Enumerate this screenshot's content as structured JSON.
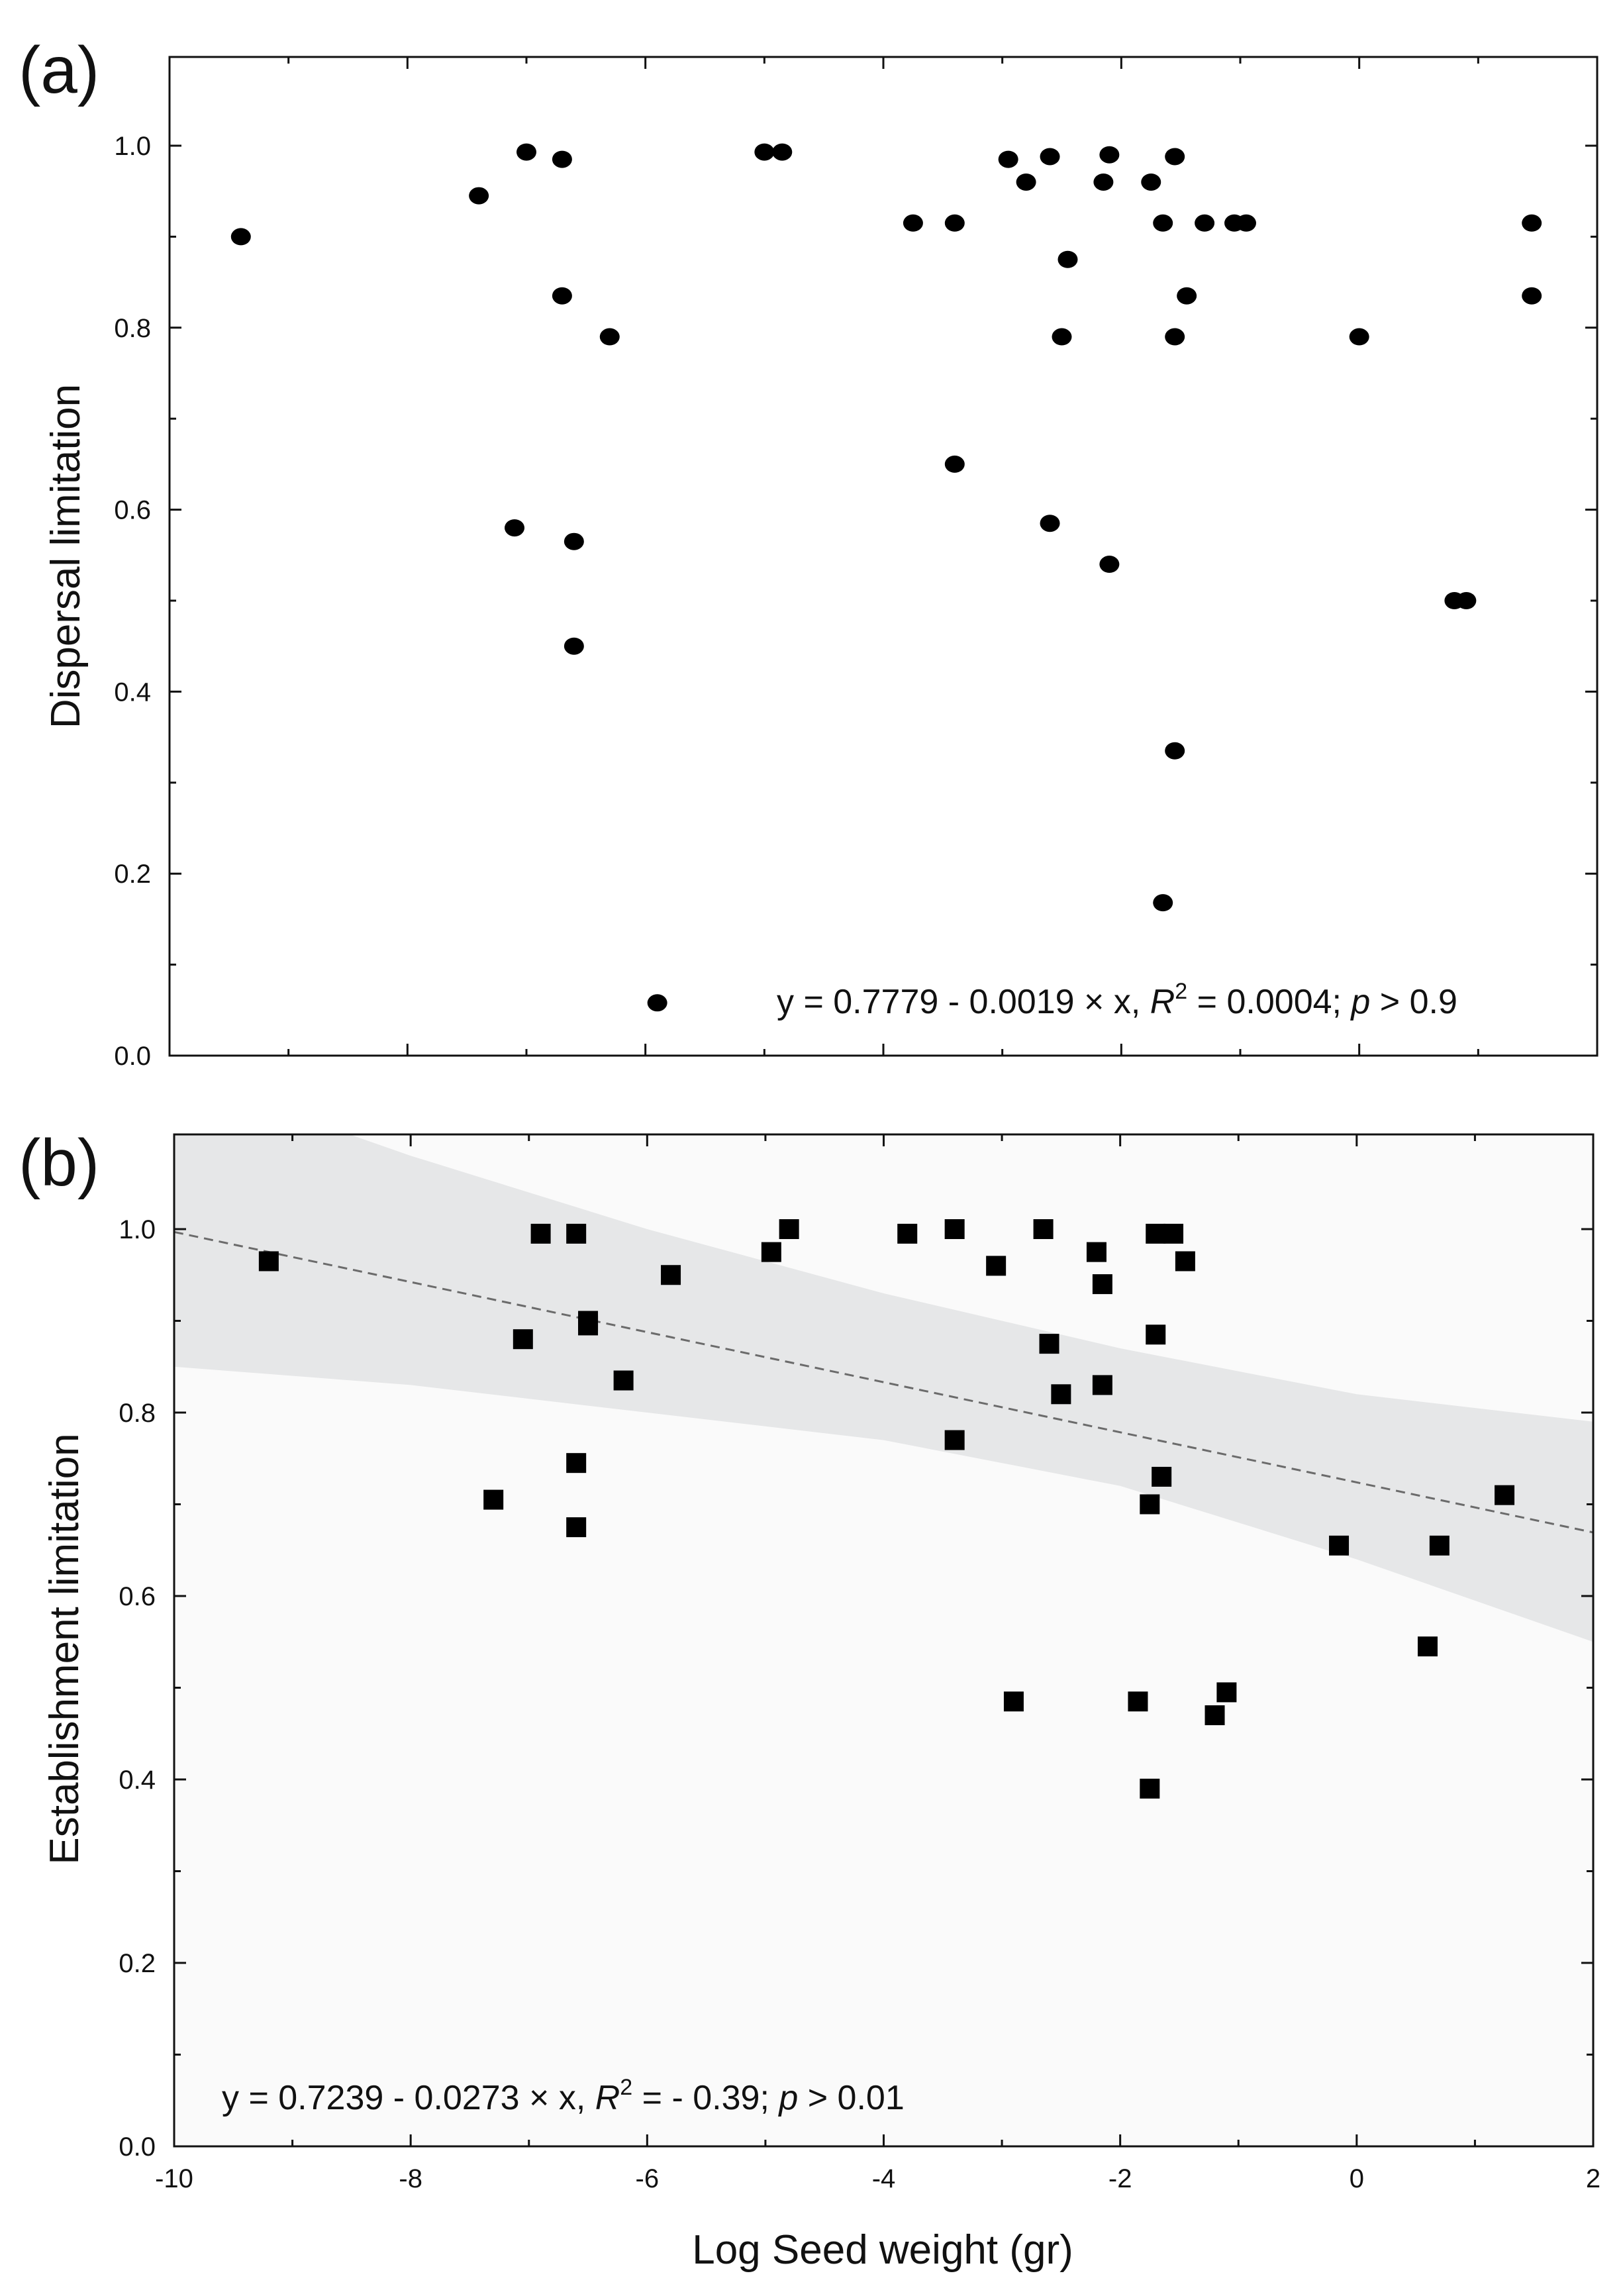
{
  "chart_data": [
    {
      "panel": "(a)",
      "type": "scatter",
      "marker": "circle",
      "xlabel": "",
      "ylabel": "Dispersal limitation",
      "xlim": [
        -10,
        2
      ],
      "ylim": [
        0,
        1.1
      ],
      "yticks": [
        0.0,
        0.2,
        0.4,
        0.6,
        0.8,
        1.0
      ],
      "ytick_labels": [
        "0.0",
        "0.2",
        "0.4",
        "0.6",
        "0.8",
        "1.0"
      ],
      "xtick_labels_shown": false,
      "annotation": {
        "prefix": "y = 0.7779 - 0.0019 × x, ",
        "r": "R",
        "sup": "2",
        "mid": " = 0.0004; ",
        "p": "p",
        "suffix": " > 0.9"
      },
      "points": [
        {
          "x": -9.4,
          "y": 0.9
        },
        {
          "x": -7.4,
          "y": 0.945
        },
        {
          "x": -7.0,
          "y": 0.993
        },
        {
          "x": -6.7,
          "y": 0.985
        },
        {
          "x": -6.7,
          "y": 0.835
        },
        {
          "x": -6.3,
          "y": 0.79
        },
        {
          "x": -7.1,
          "y": 0.58
        },
        {
          "x": -6.6,
          "y": 0.565
        },
        {
          "x": -6.6,
          "y": 0.45
        },
        {
          "x": -5.9,
          "y": 0.058
        },
        {
          "x": -5.0,
          "y": 0.993
        },
        {
          "x": -4.85,
          "y": 0.993
        },
        {
          "x": -3.75,
          "y": 0.915
        },
        {
          "x": -3.4,
          "y": 0.915
        },
        {
          "x": -3.4,
          "y": 0.65
        },
        {
          "x": -2.95,
          "y": 0.985
        },
        {
          "x": -2.8,
          "y": 0.96
        },
        {
          "x": -2.6,
          "y": 0.988
        },
        {
          "x": -2.6,
          "y": 0.585
        },
        {
          "x": -2.45,
          "y": 0.875
        },
        {
          "x": -2.5,
          "y": 0.79
        },
        {
          "x": -2.1,
          "y": 0.99
        },
        {
          "x": -2.15,
          "y": 0.96
        },
        {
          "x": -2.1,
          "y": 0.54
        },
        {
          "x": -1.75,
          "y": 0.96
        },
        {
          "x": -1.65,
          "y": 0.915
        },
        {
          "x": -1.55,
          "y": 0.988
        },
        {
          "x": -1.45,
          "y": 0.835
        },
        {
          "x": -1.55,
          "y": 0.79
        },
        {
          "x": -1.3,
          "y": 0.915
        },
        {
          "x": -1.05,
          "y": 0.915
        },
        {
          "x": -0.95,
          "y": 0.915
        },
        {
          "x": -1.55,
          "y": 0.335
        },
        {
          "x": -1.65,
          "y": 0.168
        },
        {
          "x": 0.0,
          "y": 0.79
        },
        {
          "x": 0.8,
          "y": 0.5
        },
        {
          "x": 0.9,
          "y": 0.5
        },
        {
          "x": 1.45,
          "y": 0.915
        },
        {
          "x": 1.45,
          "y": 0.835
        }
      ]
    },
    {
      "panel": "(b)",
      "type": "scatter",
      "marker": "square",
      "xlabel": "Log Seed weight (gr)",
      "ylabel": "Establishment limitation",
      "xlim": [
        -10,
        2
      ],
      "ylim": [
        0,
        1.1
      ],
      "xticks": [
        -10,
        -8,
        -6,
        -4,
        -2,
        0,
        2
      ],
      "xtick_labels": [
        "-10",
        "-8",
        "-6",
        "-4",
        "-2",
        "0",
        "2"
      ],
      "yticks": [
        0.0,
        0.2,
        0.4,
        0.6,
        0.8,
        1.0
      ],
      "ytick_labels": [
        "0.0",
        "0.2",
        "0.4",
        "0.6",
        "0.8",
        "1.0"
      ],
      "fit_line": {
        "intercept": 0.7239,
        "slope": -0.0273,
        "style": "dashed"
      },
      "confidence_band": {
        "x": [
          -10,
          -8,
          -6,
          -4,
          -2,
          0,
          2
        ],
        "upper": [
          1.17,
          1.08,
          1.0,
          0.93,
          0.87,
          0.82,
          0.79
        ],
        "lower": [
          0.85,
          0.83,
          0.8,
          0.77,
          0.72,
          0.64,
          0.55
        ]
      },
      "annotation": {
        "prefix": "y = 0.7239 - 0.0273 × x, ",
        "r": "R",
        "sup": "2",
        "mid": " =  - 0.39; ",
        "p": "p",
        "suffix": " > 0.01"
      },
      "points": [
        {
          "x": -9.2,
          "y": 0.965
        },
        {
          "x": -7.3,
          "y": 0.705
        },
        {
          "x": -7.05,
          "y": 0.88
        },
        {
          "x": -6.9,
          "y": 0.995
        },
        {
          "x": -6.6,
          "y": 0.995
        },
        {
          "x": -6.6,
          "y": 0.745
        },
        {
          "x": -6.6,
          "y": 0.675
        },
        {
          "x": -6.5,
          "y": 0.895
        },
        {
          "x": -6.5,
          "y": 0.9
        },
        {
          "x": -6.2,
          "y": 0.835
        },
        {
          "x": -5.8,
          "y": 0.95
        },
        {
          "x": -4.95,
          "y": 0.975
        },
        {
          "x": -4.8,
          "y": 1.0
        },
        {
          "x": -3.8,
          "y": 0.995
        },
        {
          "x": -3.4,
          "y": 1.0
        },
        {
          "x": -3.4,
          "y": 0.77
        },
        {
          "x": -3.05,
          "y": 0.96
        },
        {
          "x": -2.65,
          "y": 1.0
        },
        {
          "x": -2.9,
          "y": 0.485
        },
        {
          "x": -2.6,
          "y": 0.875
        },
        {
          "x": -2.5,
          "y": 0.82
        },
        {
          "x": -2.2,
          "y": 0.975
        },
        {
          "x": -2.15,
          "y": 0.94
        },
        {
          "x": -2.15,
          "y": 0.83
        },
        {
          "x": -1.85,
          "y": 0.485
        },
        {
          "x": -1.75,
          "y": 0.7
        },
        {
          "x": -1.7,
          "y": 0.995
        },
        {
          "x": -1.55,
          "y": 0.995
        },
        {
          "x": -1.7,
          "y": 0.885
        },
        {
          "x": -1.65,
          "y": 0.73
        },
        {
          "x": -1.45,
          "y": 0.965
        },
        {
          "x": -1.75,
          "y": 0.39
        },
        {
          "x": -1.2,
          "y": 0.47
        },
        {
          "x": -1.1,
          "y": 0.495
        },
        {
          "x": -0.15,
          "y": 0.655
        },
        {
          "x": 0.6,
          "y": 0.545
        },
        {
          "x": 0.7,
          "y": 0.655
        },
        {
          "x": 1.25,
          "y": 0.71
        }
      ]
    }
  ]
}
